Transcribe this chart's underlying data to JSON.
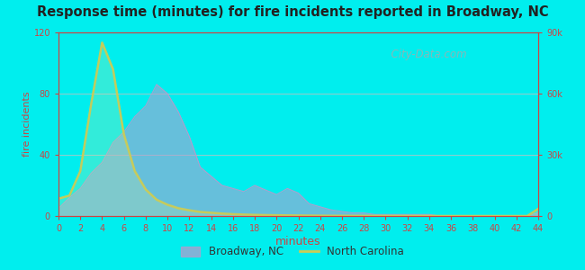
{
  "title": "Response time (minutes) for fire incidents reported in Broadway, NC",
  "xlabel": "minutes",
  "ylabel_left": "fire incidents",
  "bg_outer": "#00EEEE",
  "bg_inner_top": "#f0f9e8",
  "bg_inner_bottom": "#ffffff",
  "broadway_color": "#bb99cc",
  "broadway_edge": "#aa88bb",
  "nc_color": "#cccc55",
  "nc_fill_color": "#e8f5d0",
  "broadway_x": [
    0,
    1,
    2,
    3,
    4,
    5,
    6,
    7,
    8,
    9,
    10,
    11,
    12,
    13,
    14,
    15,
    16,
    17,
    18,
    19,
    20,
    21,
    22,
    23,
    24,
    25,
    26,
    27,
    28,
    29,
    30,
    31,
    32,
    33,
    34,
    35,
    36,
    37,
    38,
    39,
    40,
    41,
    42,
    43,
    44
  ],
  "broadway_y": [
    5,
    12,
    18,
    28,
    35,
    48,
    55,
    65,
    72,
    86,
    80,
    68,
    52,
    32,
    26,
    20,
    18,
    16,
    20,
    17,
    14,
    18,
    15,
    8,
    6,
    4,
    3,
    2,
    2,
    1,
    1,
    1,
    1,
    1,
    1,
    0,
    0,
    0,
    0,
    0,
    0,
    0,
    0,
    0,
    2
  ],
  "nc_x": [
    0,
    1,
    2,
    3,
    4,
    5,
    6,
    7,
    8,
    9,
    10,
    11,
    12,
    13,
    14,
    15,
    16,
    17,
    18,
    19,
    20,
    21,
    22,
    23,
    24,
    25,
    26,
    27,
    28,
    29,
    30,
    31,
    32,
    33,
    34,
    35,
    36,
    37,
    38,
    39,
    40,
    41,
    42,
    43,
    44
  ],
  "nc_y": [
    8500,
    10000,
    22000,
    55000,
    85000,
    72000,
    40000,
    22000,
    13000,
    8000,
    5500,
    3800,
    2800,
    2000,
    1600,
    1200,
    900,
    700,
    550,
    450,
    370,
    300,
    240,
    190,
    150,
    110,
    90,
    70,
    55,
    45,
    35,
    28,
    22,
    18,
    14,
    11,
    9,
    7,
    6,
    5,
    4,
    3,
    3,
    2,
    3500
  ],
  "left_ylim": [
    0,
    120
  ],
  "right_ylim": [
    0,
    90000
  ],
  "left_yticks": [
    0,
    40,
    80,
    120
  ],
  "right_yticks": [
    0,
    30000,
    60000,
    90000
  ],
  "right_yticklabels": [
    "0",
    "30k",
    "60k",
    "90k"
  ],
  "xticks": [
    0,
    2,
    4,
    6,
    8,
    10,
    12,
    14,
    16,
    18,
    20,
    22,
    24,
    26,
    28,
    30,
    32,
    34,
    36,
    38,
    40,
    42,
    44
  ],
  "tick_color": "#cc4444",
  "label_color": "#cc4444",
  "title_color": "#222222",
  "watermark": "  City-Data.com",
  "grid_color": "#ddbbbb",
  "figsize": [
    6.5,
    3.0
  ],
  "dpi": 100
}
